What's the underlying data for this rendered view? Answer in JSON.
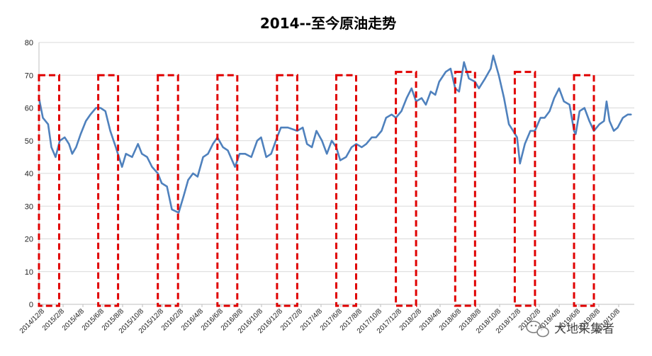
{
  "chart_data": {
    "type": "line",
    "title": "2014--至今原油走势",
    "ylim": [
      0,
      80
    ],
    "y_ticks": [
      "0",
      "10",
      "20",
      "30",
      "40",
      "50",
      "60",
      "70",
      "80"
    ],
    "x_ticks": [
      "2014/12/8",
      "2015/2/8",
      "2015/4/8",
      "2015/6/8",
      "2015/8/8",
      "2015/10/8",
      "2015/12/8",
      "2016/2/8",
      "2016/4/8",
      "2016/6/8",
      "2016/8/8",
      "2016/10/8",
      "2016/12/8",
      "2017/2/8",
      "2017/4/8",
      "2017/6/8",
      "2017/8/8",
      "2017/10/8",
      "2017/12/8",
      "2018/2/8",
      "2018/4/8",
      "2018/6/8",
      "2018/8/8",
      "2018/10/8",
      "2018/12/8",
      "2019/2/8",
      "2019/4/8",
      "2019/6/8",
      "2019/8/8",
      "2019/10/8"
    ],
    "grid": true,
    "legend": "none",
    "series": [
      {
        "color": "#4f81bd",
        "points": [
          [
            "2014-12-08",
            63
          ],
          [
            "2014-12-20",
            57
          ],
          [
            "2015-01-05",
            55
          ],
          [
            "2015-01-15",
            48
          ],
          [
            "2015-01-28",
            45
          ],
          [
            "2015-02-10",
            50
          ],
          [
            "2015-02-25",
            51
          ],
          [
            "2015-03-10",
            49
          ],
          [
            "2015-03-20",
            46
          ],
          [
            "2015-04-01",
            48
          ],
          [
            "2015-04-15",
            52
          ],
          [
            "2015-05-01",
            56
          ],
          [
            "2015-05-15",
            58
          ],
          [
            "2015-06-01",
            60
          ],
          [
            "2015-06-15",
            60
          ],
          [
            "2015-06-30",
            59
          ],
          [
            "2015-07-15",
            53
          ],
          [
            "2015-08-01",
            48
          ],
          [
            "2015-08-20",
            42
          ],
          [
            "2015-09-01",
            46
          ],
          [
            "2015-09-20",
            45
          ],
          [
            "2015-10-08",
            49
          ],
          [
            "2015-10-20",
            46
          ],
          [
            "2015-11-05",
            45
          ],
          [
            "2015-11-20",
            42
          ],
          [
            "2015-12-08",
            40
          ],
          [
            "2015-12-20",
            37
          ],
          [
            "2016-01-05",
            36
          ],
          [
            "2016-01-20",
            29
          ],
          [
            "2016-02-10",
            28
          ],
          [
            "2016-02-25",
            33
          ],
          [
            "2016-03-10",
            38
          ],
          [
            "2016-03-25",
            40
          ],
          [
            "2016-04-08",
            39
          ],
          [
            "2016-04-25",
            45
          ],
          [
            "2016-05-10",
            46
          ],
          [
            "2016-05-25",
            49
          ],
          [
            "2016-06-08",
            51
          ],
          [
            "2016-06-25",
            48
          ],
          [
            "2016-07-10",
            47
          ],
          [
            "2016-08-01",
            42
          ],
          [
            "2016-08-15",
            46
          ],
          [
            "2016-09-01",
            46
          ],
          [
            "2016-09-20",
            45
          ],
          [
            "2016-10-08",
            50
          ],
          [
            "2016-10-20",
            51
          ],
          [
            "2016-11-05",
            45
          ],
          [
            "2016-11-20",
            46
          ],
          [
            "2016-12-08",
            51
          ],
          [
            "2016-12-20",
            54
          ],
          [
            "2017-01-10",
            54
          ],
          [
            "2017-02-08",
            53
          ],
          [
            "2017-02-25",
            54
          ],
          [
            "2017-03-10",
            49
          ],
          [
            "2017-03-25",
            48
          ],
          [
            "2017-04-08",
            53
          ],
          [
            "2017-04-25",
            50
          ],
          [
            "2017-05-10",
            46
          ],
          [
            "2017-05-25",
            50
          ],
          [
            "2017-06-08",
            48
          ],
          [
            "2017-06-20",
            44
          ],
          [
            "2017-07-08",
            45
          ],
          [
            "2017-07-25",
            48
          ],
          [
            "2017-08-08",
            49
          ],
          [
            "2017-08-25",
            48
          ],
          [
            "2017-09-08",
            49
          ],
          [
            "2017-09-25",
            51
          ],
          [
            "2017-10-08",
            51
          ],
          [
            "2017-10-25",
            53
          ],
          [
            "2017-11-08",
            57
          ],
          [
            "2017-11-25",
            58
          ],
          [
            "2017-12-08",
            57
          ],
          [
            "2017-12-25",
            59
          ],
          [
            "2018-01-10",
            63
          ],
          [
            "2018-01-25",
            66
          ],
          [
            "2018-02-08",
            62
          ],
          [
            "2018-02-25",
            63
          ],
          [
            "2018-03-10",
            61
          ],
          [
            "2018-03-25",
            65
          ],
          [
            "2018-04-08",
            64
          ],
          [
            "2018-04-20",
            68
          ],
          [
            "2018-05-10",
            71
          ],
          [
            "2018-05-25",
            72
          ],
          [
            "2018-06-08",
            66
          ],
          [
            "2018-06-20",
            65
          ],
          [
            "2018-07-05",
            74
          ],
          [
            "2018-07-20",
            69
          ],
          [
            "2018-08-08",
            68
          ],
          [
            "2018-08-20",
            66
          ],
          [
            "2018-09-08",
            69
          ],
          [
            "2018-09-25",
            72
          ],
          [
            "2018-10-03",
            76
          ],
          [
            "2018-10-20",
            70
          ],
          [
            "2018-11-05",
            63
          ],
          [
            "2018-11-20",
            55
          ],
          [
            "2018-12-03",
            53
          ],
          [
            "2018-12-15",
            51
          ],
          [
            "2018-12-24",
            43
          ],
          [
            "2019-01-08",
            49
          ],
          [
            "2019-01-25",
            53
          ],
          [
            "2019-02-08",
            53
          ],
          [
            "2019-02-25",
            57
          ],
          [
            "2019-03-10",
            57
          ],
          [
            "2019-03-25",
            59
          ],
          [
            "2019-04-08",
            63
          ],
          [
            "2019-04-23",
            66
          ],
          [
            "2019-05-08",
            62
          ],
          [
            "2019-05-25",
            61
          ],
          [
            "2019-06-08",
            53
          ],
          [
            "2019-06-13",
            52
          ],
          [
            "2019-06-25",
            59
          ],
          [
            "2019-07-10",
            60
          ],
          [
            "2019-07-25",
            56
          ],
          [
            "2019-08-08",
            53
          ],
          [
            "2019-08-25",
            55
          ],
          [
            "2019-09-08",
            56
          ],
          [
            "2019-09-16",
            62
          ],
          [
            "2019-09-25",
            56
          ],
          [
            "2019-10-08",
            53
          ],
          [
            "2019-10-20",
            54
          ],
          [
            "2019-11-05",
            57
          ],
          [
            "2019-11-20",
            58
          ],
          [
            "2019-12-01",
            58
          ]
        ]
      }
    ],
    "highlight_boxes": [
      {
        "start": "2014-12-08",
        "end": "2015-02-08",
        "top": 70
      },
      {
        "start": "2015-06-08",
        "end": "2015-08-08",
        "top": 70
      },
      {
        "start": "2015-12-08",
        "end": "2016-02-08",
        "top": 70
      },
      {
        "start": "2016-06-08",
        "end": "2016-08-08",
        "top": 70
      },
      {
        "start": "2016-12-08",
        "end": "2017-02-08",
        "top": 70
      },
      {
        "start": "2017-06-08",
        "end": "2017-08-08",
        "top": 70
      },
      {
        "start": "2017-12-08",
        "end": "2018-02-08",
        "top": 71
      },
      {
        "start": "2018-06-08",
        "end": "2018-08-08",
        "top": 71
      },
      {
        "start": "2018-12-08",
        "end": "2019-02-08",
        "top": 71
      },
      {
        "start": "2019-06-08",
        "end": "2019-08-08",
        "top": 70
      }
    ]
  },
  "watermark": {
    "icon": "wechat-icon",
    "text": "大地采集者"
  }
}
